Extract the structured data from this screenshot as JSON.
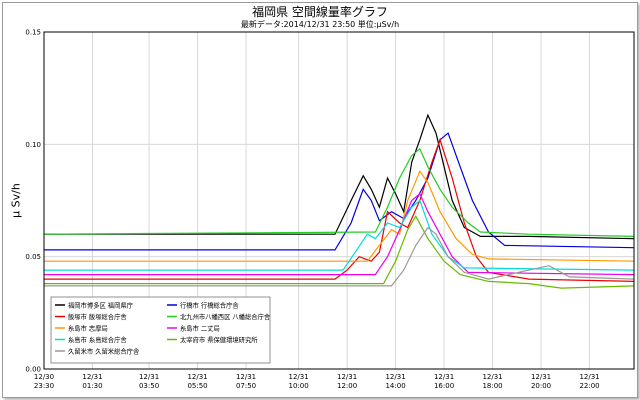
{
  "chart_data": {
    "type": "line",
    "title": "福岡県 空間線量率グラフ",
    "subtitle": "最新データ:2014/12/31 23:50 単位:μSv/h",
    "ylabel": "μ Sv/h",
    "xlabel": "",
    "ylim": [
      0,
      0.15
    ],
    "yticks": [
      "0.15",
      "0.10",
      "0.05",
      "0.00"
    ],
    "ytick_values": [
      0.15,
      0.1,
      0.05,
      0.0
    ],
    "xlim": [
      0,
      1460
    ],
    "x_unit": "minutes after 2014/12/30 23:30",
    "xticks": [
      {
        "x": 0,
        "date": "12/30",
        "time": "23:30"
      },
      {
        "x": 120,
        "date": "12/31",
        "time": "01:30"
      },
      {
        "x": 260,
        "date": "12/31",
        "time": "03:50"
      },
      {
        "x": 380,
        "date": "12/31",
        "time": "05:50"
      },
      {
        "x": 500,
        "date": "12/31",
        "time": "07:50"
      },
      {
        "x": 630,
        "date": "12/31",
        "time": "10:00"
      },
      {
        "x": 750,
        "date": "12/31",
        "time": "12:00"
      },
      {
        "x": 870,
        "date": "12/31",
        "time": "14:00"
      },
      {
        "x": 990,
        "date": "12/31",
        "time": "16:00"
      },
      {
        "x": 1110,
        "date": "12/31",
        "time": "18:00"
      },
      {
        "x": 1230,
        "date": "12/31",
        "time": "20:00"
      },
      {
        "x": 1350,
        "date": "12/31",
        "time": "22:00"
      }
    ],
    "grid": true,
    "legend_position": "bottom-left",
    "series": [
      {
        "name": "福岡市博多区 福岡県庁",
        "color": "#000000",
        "points": [
          [
            0,
            0.06
          ],
          [
            680,
            0.06
          ],
          [
            720,
            0.06
          ],
          [
            760,
            0.075
          ],
          [
            790,
            0.086
          ],
          [
            810,
            0.08
          ],
          [
            830,
            0.072
          ],
          [
            850,
            0.085
          ],
          [
            870,
            0.078
          ],
          [
            890,
            0.07
          ],
          [
            910,
            0.092
          ],
          [
            930,
            0.102
          ],
          [
            950,
            0.113
          ],
          [
            970,
            0.105
          ],
          [
            990,
            0.09
          ],
          [
            1010,
            0.075
          ],
          [
            1040,
            0.063
          ],
          [
            1080,
            0.059
          ],
          [
            1200,
            0.059
          ],
          [
            1460,
            0.058
          ]
        ]
      },
      {
        "name": "行橋市 行橋総合庁舎",
        "color": "#0000dd",
        "points": [
          [
            0,
            0.053
          ],
          [
            720,
            0.053
          ],
          [
            760,
            0.065
          ],
          [
            790,
            0.08
          ],
          [
            810,
            0.075
          ],
          [
            830,
            0.066
          ],
          [
            860,
            0.07
          ],
          [
            890,
            0.067
          ],
          [
            920,
            0.075
          ],
          [
            950,
            0.085
          ],
          [
            980,
            0.102
          ],
          [
            1000,
            0.105
          ],
          [
            1030,
            0.09
          ],
          [
            1060,
            0.075
          ],
          [
            1100,
            0.061
          ],
          [
            1140,
            0.055
          ],
          [
            1460,
            0.054
          ]
        ]
      },
      {
        "name": "飯塚市 飯塚総合庁舎",
        "color": "#ee0000",
        "points": [
          [
            0,
            0.04
          ],
          [
            720,
            0.04
          ],
          [
            750,
            0.044
          ],
          [
            780,
            0.05
          ],
          [
            810,
            0.048
          ],
          [
            830,
            0.052
          ],
          [
            850,
            0.07
          ],
          [
            880,
            0.065
          ],
          [
            900,
            0.063
          ],
          [
            930,
            0.075
          ],
          [
            960,
            0.092
          ],
          [
            980,
            0.102
          ],
          [
            1010,
            0.085
          ],
          [
            1040,
            0.065
          ],
          [
            1070,
            0.05
          ],
          [
            1100,
            0.043
          ],
          [
            1200,
            0.04
          ],
          [
            1460,
            0.039
          ]
        ]
      },
      {
        "name": "北九州市八幡西区 八幡総合庁舎",
        "color": "#22cc22",
        "points": [
          [
            0,
            0.06
          ],
          [
            820,
            0.061
          ],
          [
            850,
            0.072
          ],
          [
            880,
            0.085
          ],
          [
            910,
            0.095
          ],
          [
            930,
            0.098
          ],
          [
            950,
            0.09
          ],
          [
            980,
            0.08
          ],
          [
            1010,
            0.072
          ],
          [
            1050,
            0.065
          ],
          [
            1080,
            0.061
          ],
          [
            1200,
            0.06
          ],
          [
            1460,
            0.059
          ]
        ]
      },
      {
        "name": "糸島市 志摩局",
        "color": "#ff9900",
        "points": [
          [
            0,
            0.048
          ],
          [
            800,
            0.048
          ],
          [
            830,
            0.055
          ],
          [
            860,
            0.062
          ],
          [
            880,
            0.06
          ],
          [
            900,
            0.075
          ],
          [
            930,
            0.088
          ],
          [
            950,
            0.083
          ],
          [
            980,
            0.07
          ],
          [
            1020,
            0.058
          ],
          [
            1060,
            0.051
          ],
          [
            1100,
            0.049
          ],
          [
            1460,
            0.048
          ]
        ]
      },
      {
        "name": "糸島市 二丈局",
        "color": "#ee00ee",
        "points": [
          [
            0,
            0.042
          ],
          [
            820,
            0.042
          ],
          [
            850,
            0.05
          ],
          [
            880,
            0.062
          ],
          [
            910,
            0.075
          ],
          [
            930,
            0.078
          ],
          [
            950,
            0.07
          ],
          [
            980,
            0.06
          ],
          [
            1010,
            0.05
          ],
          [
            1050,
            0.043
          ],
          [
            1460,
            0.042
          ]
        ]
      },
      {
        "name": "糸島市 糸島総合庁舎",
        "color": "#00dddd",
        "points": [
          [
            0,
            0.044
          ],
          [
            740,
            0.044
          ],
          [
            770,
            0.052
          ],
          [
            800,
            0.06
          ],
          [
            820,
            0.058
          ],
          [
            850,
            0.065
          ],
          [
            880,
            0.063
          ],
          [
            910,
            0.072
          ],
          [
            930,
            0.075
          ],
          [
            960,
            0.06
          ],
          [
            1000,
            0.05
          ],
          [
            1040,
            0.045
          ],
          [
            1460,
            0.044
          ]
        ]
      },
      {
        "name": "太宰府市 県保健環境研究所",
        "color": "#66bb00",
        "points": [
          [
            0,
            0.038
          ],
          [
            840,
            0.038
          ],
          [
            870,
            0.048
          ],
          [
            900,
            0.062
          ],
          [
            920,
            0.068
          ],
          [
            950,
            0.058
          ],
          [
            990,
            0.048
          ],
          [
            1030,
            0.042
          ],
          [
            1100,
            0.039
          ],
          [
            1200,
            0.038
          ],
          [
            1280,
            0.036
          ],
          [
            1460,
            0.037
          ]
        ]
      },
      {
        "name": "久留米市 久留米総合庁舎",
        "color": "#999999",
        "points": [
          [
            0,
            0.037
          ],
          [
            860,
            0.037
          ],
          [
            890,
            0.044
          ],
          [
            920,
            0.055
          ],
          [
            950,
            0.063
          ],
          [
            970,
            0.06
          ],
          [
            1000,
            0.05
          ],
          [
            1040,
            0.043
          ],
          [
            1100,
            0.04
          ],
          [
            1200,
            0.044
          ],
          [
            1250,
            0.046
          ],
          [
            1300,
            0.041
          ],
          [
            1460,
            0.04
          ]
        ]
      }
    ]
  }
}
